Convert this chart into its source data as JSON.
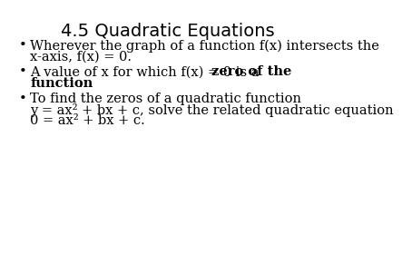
{
  "title": "4.5 Quadratic Equations",
  "background_color": "#ffffff",
  "text_color": "#000000",
  "title_fontsize": 14,
  "body_fontsize": 10.5,
  "bullets": [
    {
      "lines": [
        [
          {
            "text": "Wherever the graph of a function f(x) intersects the",
            "bold": false
          }
        ],
        [
          {
            "text": "x-axis, f(x) = 0.",
            "bold": false
          }
        ]
      ]
    },
    {
      "lines": [
        [
          {
            "text": "A value of x for which f(x) = 0 is a ",
            "bold": false
          },
          {
            "text": "zero of the",
            "bold": true
          }
        ],
        [
          {
            "text": "function",
            "bold": true
          },
          {
            "text": ".",
            "bold": false
          }
        ]
      ]
    },
    {
      "lines": [
        [
          {
            "text": "To find the zeros of a quadratic function",
            "bold": false
          }
        ],
        [
          {
            "text": "y = ax² + bx + c, solve the related quadratic equation",
            "bold": false
          }
        ],
        [
          {
            "text": "0 = ax² + bx + c.",
            "bold": false
          }
        ]
      ]
    }
  ]
}
